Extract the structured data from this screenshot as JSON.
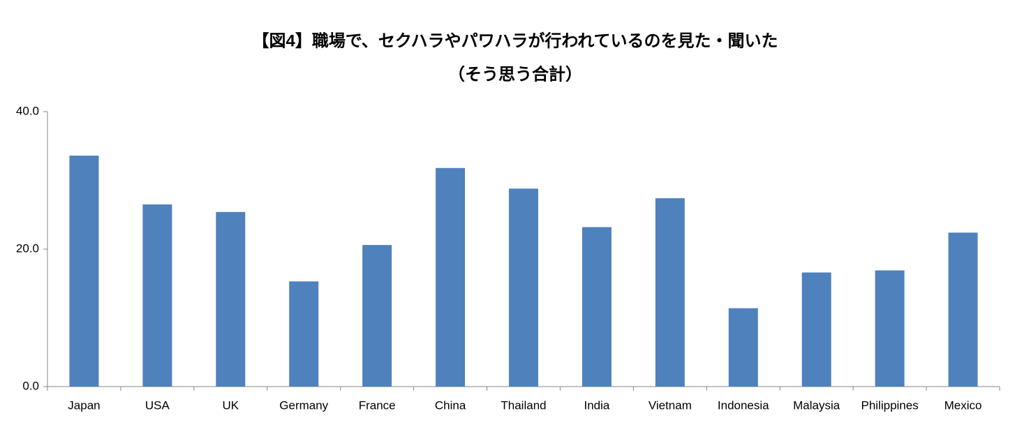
{
  "chart_data": {
    "type": "bar",
    "title": "【図4】職場で、セクハラやパワハラが行われているのを見た・聞いた",
    "subtitle": "（そう思う合計）",
    "categories": [
      "Japan",
      "USA",
      "UK",
      "Germany",
      "France",
      "China",
      "Thailand",
      "India",
      "Vietnam",
      "Indonesia",
      "Malaysia",
      "Philippines",
      "Mexico"
    ],
    "values": [
      33.6,
      26.5,
      25.4,
      15.3,
      20.6,
      31.8,
      28.8,
      23.2,
      27.4,
      11.4,
      16.6,
      16.9,
      22.4
    ],
    "color": "#4f81bd",
    "ylim": [
      0,
      40
    ],
    "yticks": [
      {
        "value": 0,
        "label": "0.0"
      },
      {
        "value": 20,
        "label": "20.0"
      },
      {
        "value": 40,
        "label": "40.0"
      }
    ],
    "grid": false
  }
}
